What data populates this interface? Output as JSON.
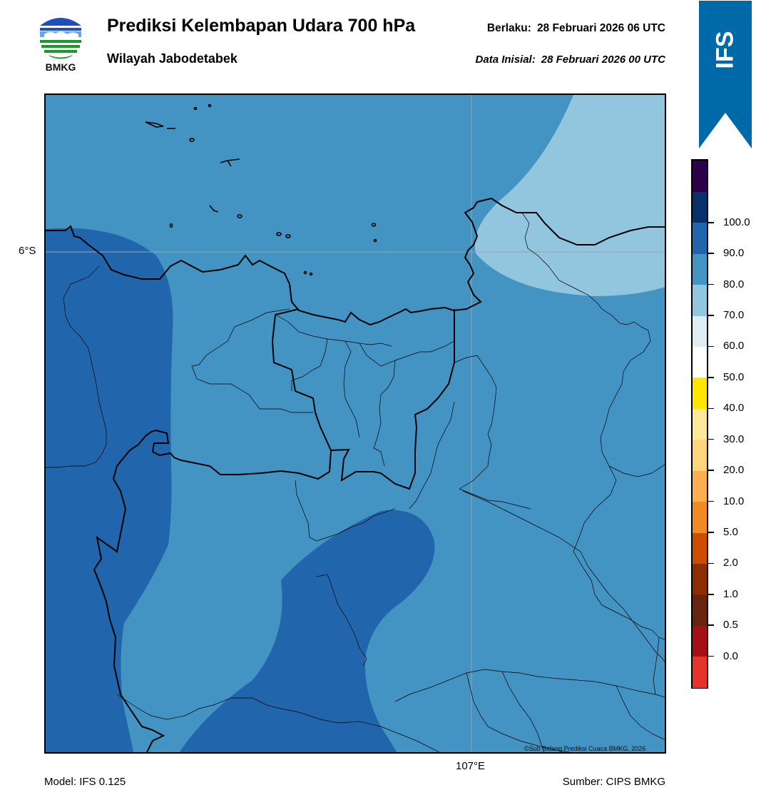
{
  "header": {
    "title": "Prediksi Kelembapan Udara 700 hPa",
    "subtitle": "Wilayah Jabodetabek",
    "valid_label": "Berlaku:",
    "valid_value": "28 Februari 2026 06 UTC",
    "init_label": "Data Inisial:",
    "init_value": "28 Februari 2026 00 UTC"
  },
  "logo": {
    "icon": "bmkg-logo-icon",
    "text": "BMKG"
  },
  "badge": {
    "text": "IFS",
    "color": "#0069a8"
  },
  "map": {
    "lat_label": "6°S",
    "lon_label": "107°E",
    "copyright": "©Sub Bidang Prediksi Cuaca BMKG, 2026",
    "fill_colors": {
      "range_60_70": "#92c5de",
      "range_70_80": "#4393c3",
      "range_80_90": "#2166ac"
    }
  },
  "footer": {
    "model": "Model: IFS 0.125",
    "source": "Sumber: CIPS BMKG"
  },
  "colorbar": {
    "labels": [
      "0.0",
      "0.5",
      "1.0",
      "2.0",
      "5.0",
      "10.0",
      "20.0",
      "30.0",
      "40.0",
      "50.0",
      "60.0",
      "70.0",
      "80.0",
      "90.0",
      "100.0"
    ],
    "colors": [
      "#e6342d",
      "#a50f15",
      "#67250e",
      "#8c2d04",
      "#cc4c02",
      "#f08c23",
      "#fdae4f",
      "#fed57a",
      "#ffe89a",
      "#ffe600",
      "#ffffff",
      "#e0ecf4",
      "#92c5de",
      "#4393c3",
      "#2166ac",
      "#08306b",
      "#2d004b"
    ]
  }
}
